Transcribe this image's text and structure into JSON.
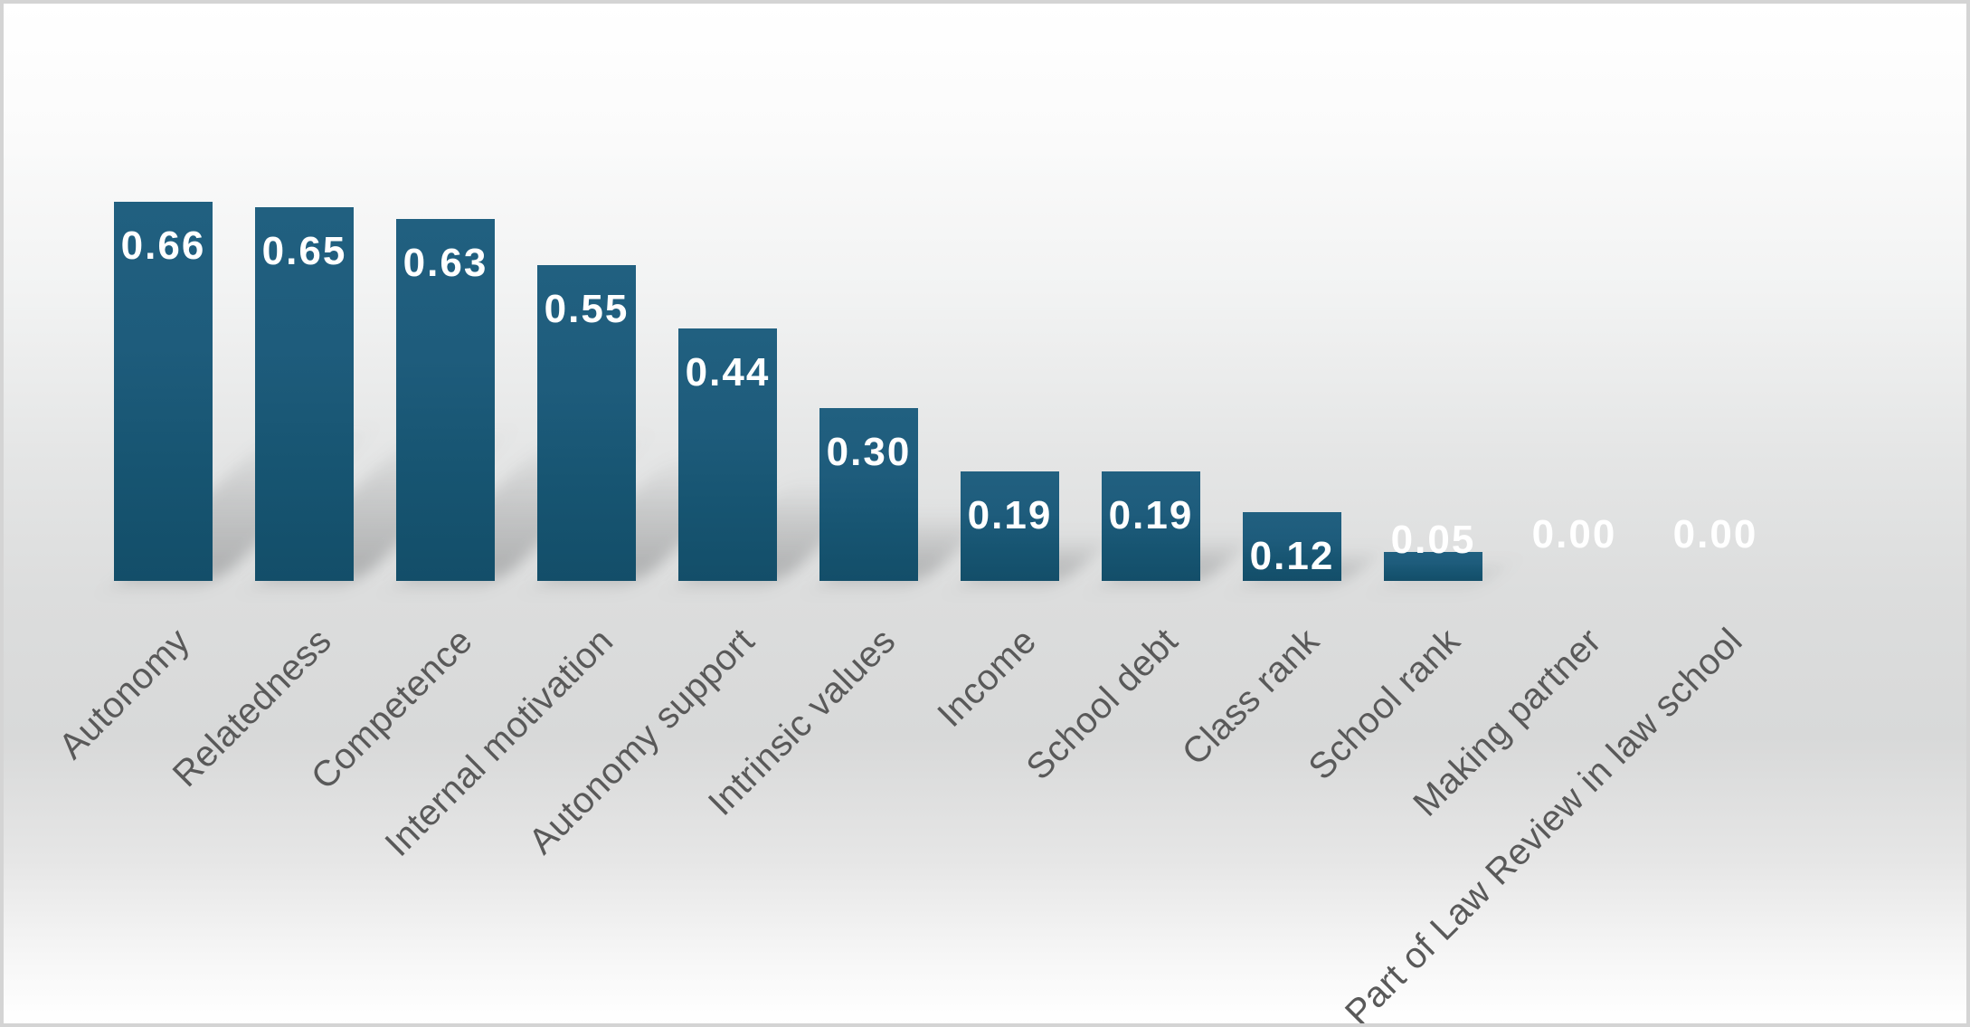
{
  "chart_data": {
    "type": "bar",
    "title": "",
    "xlabel": "",
    "ylabel": "",
    "categories": [
      "Autonomy",
      "Relatedness",
      "Competence",
      "Internal motivation",
      "Autonomy support",
      "Intrinsic values",
      "Income",
      "School debt",
      "Class rank",
      "School rank",
      "Making partner",
      "Part of Law Review in law school"
    ],
    "values": [
      0.66,
      0.65,
      0.63,
      0.55,
      0.44,
      0.3,
      0.19,
      0.19,
      0.12,
      0.05,
      0.0,
      0.0
    ],
    "value_labels": [
      "0.66",
      "0.65",
      "0.63",
      "0.55",
      "0.44",
      "0.30",
      "0.19",
      "0.19",
      "0.12",
      "0.05",
      "0.00",
      "0.00"
    ],
    "ylim": [
      0,
      0.75
    ],
    "grid": false,
    "legend": false,
    "axes_visible": false,
    "data_label_position": "inside-end",
    "category_label_rotation_deg": 45
  },
  "style": {
    "bar_color_top": "#216080",
    "bar_color_bottom": "#134e69",
    "value_label_color": "#ffffff",
    "category_label_color": "#595959",
    "background_edge": "#ffffff",
    "background_middle": "#d8d9d9",
    "border_color": "#d4d4d4",
    "shadow_color": "#9a9c9e"
  }
}
